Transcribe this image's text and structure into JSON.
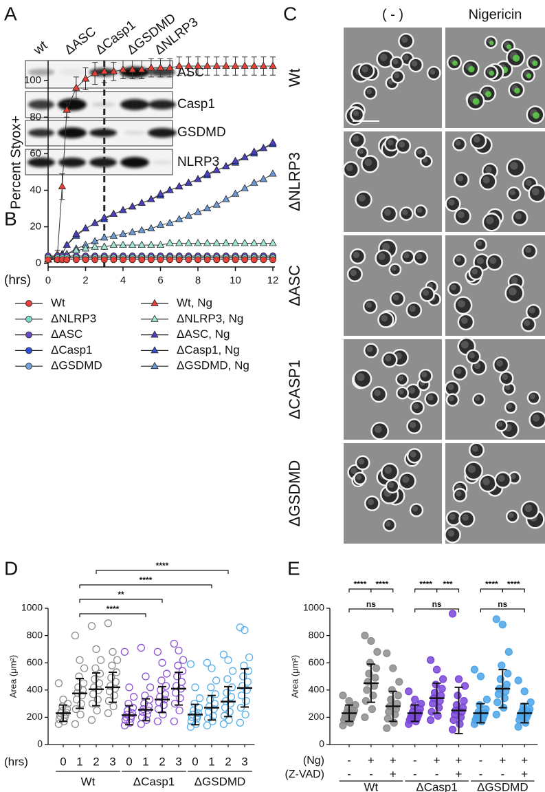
{
  "panel_a": {
    "label": "A",
    "lanes": [
      "wt",
      "ΔASC",
      "ΔCasp1",
      "ΔGSDMD",
      "ΔNLRP3"
    ],
    "proteins": [
      "ASC",
      "Casp1",
      "GSDMD",
      "NLRP3"
    ]
  },
  "panel_c": {
    "label": "C",
    "columns": [
      "( - )",
      "Nigericin"
    ],
    "rows": [
      "Wt",
      "ΔNLRP3",
      "ΔASC",
      "ΔCASP1",
      "ΔGSDMD"
    ]
  },
  "chart_data": [
    {
      "type": "line",
      "panel": "B",
      "ylabel": "Percent Styox+",
      "xlabel": "(hrs)",
      "xlim": [
        0,
        12
      ],
      "ylim": [
        -2,
        111
      ],
      "xticks": [
        0,
        2,
        4,
        6,
        8,
        10,
        12
      ],
      "yticks": [
        0,
        20,
        40,
        60,
        80,
        100
      ],
      "vline": 3,
      "x": [
        0,
        0.5,
        0.75,
        1,
        1.5,
        2,
        2.5,
        3,
        3.5,
        4,
        4.5,
        5,
        5.5,
        6,
        6.5,
        7,
        7.5,
        8,
        8.5,
        9,
        9.5,
        10,
        10.5,
        11,
        11.5,
        12
      ],
      "series": [
        {
          "name": "Wt",
          "color": "#e8413a",
          "marker": "circle",
          "values": [
            2,
            2,
            2,
            2,
            2,
            2,
            2,
            2,
            2,
            2,
            2,
            2,
            2,
            2,
            2,
            2,
            2,
            2,
            2,
            2,
            2,
            2,
            2,
            2,
            2,
            2
          ]
        },
        {
          "name": "ΔNLRP3",
          "color": "#7fd9c8",
          "marker": "circle",
          "values": [
            3,
            3,
            3,
            3,
            3,
            3,
            3,
            3,
            3,
            3,
            3,
            3,
            3,
            3,
            3,
            3,
            3,
            3,
            3,
            3,
            3,
            3,
            3,
            3,
            3,
            3
          ]
        },
        {
          "name": "ΔASC",
          "color": "#6a4bc4",
          "marker": "circle",
          "values": [
            4,
            4,
            4,
            4,
            4,
            4,
            4,
            4,
            4,
            4,
            4,
            4,
            4,
            4,
            4,
            4,
            4,
            4,
            4,
            4,
            4,
            4,
            4,
            4,
            4,
            4
          ]
        },
        {
          "name": "ΔCasp1",
          "color": "#2c4fd6",
          "marker": "circle",
          "values": [
            4,
            4,
            4,
            4,
            4,
            4,
            4,
            4,
            4,
            4,
            4,
            4,
            4,
            4,
            4,
            4,
            4,
            4,
            4,
            4,
            4,
            4,
            4,
            4,
            4,
            4
          ]
        },
        {
          "name": "ΔGSDMD",
          "color": "#6f9fd8",
          "marker": "circle",
          "values": [
            3,
            3,
            3,
            3,
            3,
            3,
            3,
            3,
            3,
            3,
            3,
            3,
            3,
            3,
            3,
            3,
            3,
            3,
            3,
            3,
            3,
            3,
            3,
            3,
            3,
            3
          ]
        },
        {
          "name": "Wt, Ng",
          "color": "#e8413a",
          "marker": "triangle",
          "values": [
            2,
            5,
            42,
            84,
            96,
            101,
            104,
            105,
            105,
            106,
            106,
            106,
            107,
            107,
            107,
            108,
            108,
            108,
            108,
            108,
            108,
            108,
            108,
            108,
            108,
            108
          ],
          "errors": [
            1,
            2,
            7,
            4,
            6,
            6,
            6,
            6,
            5,
            5,
            5,
            5,
            5,
            5,
            5,
            5,
            5,
            5,
            5,
            5,
            5,
            5,
            5,
            5,
            5,
            5
          ]
        },
        {
          "name": "ΔNLRP3, Ng",
          "color": "#9fe6d4",
          "marker": "triangle",
          "values": [
            2,
            3,
            4,
            5,
            7,
            8,
            9,
            9,
            10,
            10,
            10,
            10,
            10,
            10,
            11,
            11,
            11,
            11,
            11,
            11,
            11,
            11,
            11,
            11,
            11,
            11
          ]
        },
        {
          "name": "ΔASC, Ng",
          "color": "#4a3fc0",
          "marker": "triangle",
          "values": [
            2,
            3,
            5,
            10,
            16,
            19,
            22,
            25,
            27,
            29,
            31,
            33,
            35,
            38,
            40,
            42,
            44,
            46,
            49,
            51,
            53,
            56,
            58,
            61,
            63,
            66
          ]
        },
        {
          "name": "ΔCasp1, Ng",
          "color": "#3250d0",
          "marker": "triangle",
          "values": [
            2,
            3,
            5,
            10,
            15,
            19,
            22,
            24,
            27,
            29,
            31,
            33,
            35,
            37,
            40,
            42,
            44,
            46,
            48,
            51,
            53,
            55,
            58,
            60,
            63,
            65
          ]
        },
        {
          "name": "ΔGSDMD, Ng",
          "color": "#6c98d4",
          "marker": "triangle",
          "values": [
            2,
            2,
            3,
            5,
            8,
            10,
            12,
            14,
            15,
            16,
            17,
            18,
            19,
            21,
            22,
            24,
            26,
            28,
            30,
            32,
            35,
            38,
            41,
            44,
            46,
            49
          ]
        }
      ]
    },
    {
      "type": "dotplot",
      "panel": "D",
      "ylabel": "Area (μm²)",
      "xlabel": "(hrs)",
      "filled": false,
      "ylim": [
        0,
        1000
      ],
      "yticks": [
        0,
        200,
        400,
        600,
        800,
        1000
      ],
      "groups": [
        {
          "name": "Wt",
          "color": "#8c8c8c",
          "categories": [
            "0",
            "1",
            "2",
            "3"
          ],
          "means": [
            230,
            375,
            405,
            420
          ],
          "sds": [
            60,
            110,
            120,
            110
          ],
          "points": [
            [
              150,
              170,
              185,
              200,
              210,
              220,
              230,
              235,
              245,
              260,
              280,
              300,
              330,
              450
            ],
            [
              150,
              220,
              260,
              300,
              330,
              360,
              380,
              400,
              420,
              450,
              500,
              560,
              620,
              800
            ],
            [
              180,
              250,
              300,
              330,
              370,
              400,
              420,
              450,
              480,
              520,
              560,
              620,
              700,
              870
            ],
            [
              230,
              280,
              320,
              360,
              390,
              410,
              430,
              460,
              490,
              530,
              580,
              620,
              680,
              890
            ]
          ]
        },
        {
          "name": "ΔCasp1",
          "color": "#8b52d6",
          "categories": [
            "0",
            "1",
            "2",
            "3"
          ],
          "means": [
            215,
            255,
            330,
            410
          ],
          "sds": [
            70,
            80,
            95,
            120
          ],
          "points": [
            [
              140,
              160,
              180,
              190,
              200,
              210,
              220,
              230,
              250,
              270,
              300,
              350,
              420,
              680
            ],
            [
              150,
              180,
              200,
              220,
              240,
              250,
              260,
              280,
              300,
              330,
              360,
              420,
              500,
              710
            ],
            [
              170,
              220,
              260,
              290,
              310,
              330,
              350,
              370,
              400,
              430,
              470,
              520,
              600,
              680
            ],
            [
              170,
              250,
              300,
              340,
              380,
              410,
              430,
              460,
              500,
              540,
              580,
              620,
              690,
              740
            ]
          ]
        },
        {
          "name": "ΔGSDMD",
          "color": "#56aee9",
          "categories": [
            "0",
            "1",
            "2",
            "3"
          ],
          "means": [
            220,
            270,
            315,
            415
          ],
          "sds": [
            75,
            90,
            110,
            140
          ],
          "points": [
            [
              130,
              150,
              170,
              190,
              200,
              210,
              220,
              230,
              250,
              270,
              300,
              340,
              420,
              590
            ],
            [
              140,
              170,
              190,
              210,
              240,
              260,
              280,
              300,
              330,
              370,
              420,
              470,
              560,
              600
            ],
            [
              150,
              180,
              210,
              240,
              270,
              300,
              320,
              350,
              380,
              420,
              480,
              540,
              620,
              660
            ],
            [
              160,
              220,
              270,
              320,
              360,
              400,
              430,
              460,
              500,
              540,
              580,
              640,
              840,
              860
            ]
          ]
        }
      ],
      "brackets": [
        {
          "from": 2,
          "to": 10,
          "label": "****"
        },
        {
          "from": 1,
          "to": 9,
          "label": "****"
        },
        {
          "from": 1,
          "to": 6,
          "label": "**"
        },
        {
          "from": 1,
          "to": 5,
          "label": "****"
        }
      ]
    },
    {
      "type": "dotplot",
      "panel": "E",
      "ylabel": "Area (μm²)",
      "filled": true,
      "condition_labels": [
        "(Ng)",
        "(Z-VAD)"
      ],
      "ylim": [
        0,
        1000
      ],
      "yticks": [
        0,
        200,
        400,
        600,
        800,
        1000
      ],
      "groups": [
        {
          "name": "Wt",
          "color": "#8c8c8c",
          "conditions": [
            [
              "-",
              "+",
              "+"
            ],
            [
              "-",
              "-",
              "+"
            ]
          ],
          "means": [
            230,
            450,
            280
          ],
          "sds": [
            60,
            140,
            110
          ],
          "points": [
            [
              140,
              160,
              180,
              190,
              200,
              210,
              220,
              230,
              240,
              250,
              270,
              290,
              320,
              360
            ],
            [
              200,
              260,
              320,
              360,
              400,
              430,
              460,
              490,
              520,
              560,
              600,
              680,
              760,
              800
            ],
            [
              120,
              160,
              190,
              220,
              240,
              260,
              280,
              300,
              330,
              360,
              400,
              460,
              560,
              670
            ]
          ]
        },
        {
          "name": "ΔCasp1",
          "color": "#7a45d8",
          "conditions": [
            [
              "-",
              "+",
              "+"
            ],
            [
              "-",
              "-",
              "+"
            ]
          ],
          "means": [
            230,
            340,
            250
          ],
          "sds": [
            60,
            110,
            170
          ],
          "points": [
            [
              150,
              170,
              180,
              190,
              200,
              210,
              220,
              230,
              240,
              260,
              280,
              300,
              330,
              390
            ],
            [
              180,
              210,
              240,
              270,
              300,
              320,
              340,
              360,
              380,
              410,
              440,
              480,
              550,
              620
            ],
            [
              110,
              150,
              180,
              200,
              220,
              240,
              250,
              270,
              290,
              320,
              360,
              430,
              480,
              960
            ]
          ]
        },
        {
          "name": "ΔGSDMD",
          "color": "#4ba5ea",
          "conditions": [
            [
              "-",
              "+",
              "+"
            ],
            [
              "-",
              "-",
              "+"
            ]
          ],
          "means": [
            230,
            410,
            230
          ],
          "sds": [
            70,
            140,
            70
          ],
          "points": [
            [
              150,
              170,
              180,
              190,
              200,
              210,
              220,
              230,
              240,
              260,
              290,
              330,
              500,
              550
            ],
            [
              220,
              270,
              310,
              340,
              370,
              390,
              410,
              440,
              480,
              520,
              580,
              680,
              880,
              920
            ],
            [
              130,
              160,
              180,
              200,
              210,
              220,
              230,
              240,
              250,
              260,
              280,
              310,
              390,
              470
            ]
          ]
        }
      ],
      "brackets": [
        {
          "from": 0,
          "to": 1,
          "label": "****"
        },
        {
          "from": 1,
          "to": 2,
          "label": "****"
        },
        {
          "from": 0,
          "to": 2,
          "label": "ns"
        },
        {
          "from": 3,
          "to": 4,
          "label": "****"
        },
        {
          "from": 4,
          "to": 5,
          "label": "***"
        },
        {
          "from": 3,
          "to": 5,
          "label": "ns"
        },
        {
          "from": 6,
          "to": 7,
          "label": "****"
        },
        {
          "from": 7,
          "to": 8,
          "label": "****"
        },
        {
          "from": 6,
          "to": 8,
          "label": "ns"
        }
      ]
    }
  ]
}
